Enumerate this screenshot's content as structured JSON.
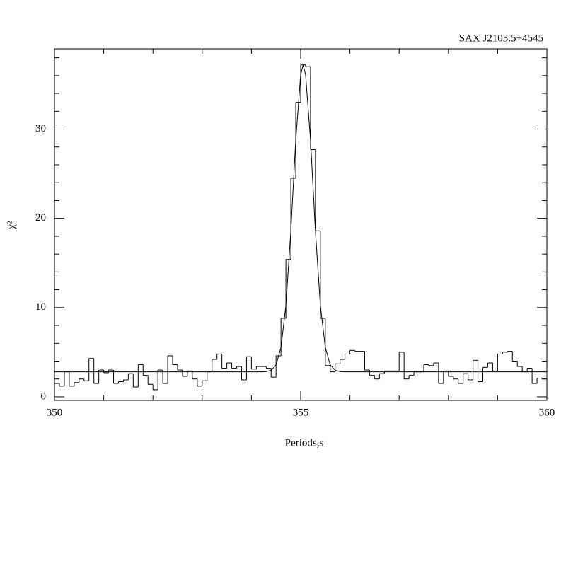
{
  "chart_data": {
    "type": "histogram",
    "title": "SAX J2103.5+4545",
    "xlabel": "Periods,s",
    "ylabel": "χ²",
    "bins": [
      350.0,
      350.1,
      350.2,
      350.3,
      350.4,
      350.5,
      350.6,
      350.7,
      350.8,
      350.9,
      351.0,
      351.1,
      351.2,
      351.3,
      351.4,
      351.5,
      351.6,
      351.7,
      351.8,
      351.9,
      352.0,
      352.1,
      352.2,
      352.3,
      352.4,
      352.5,
      352.6,
      352.7,
      352.8,
      352.9,
      353.0,
      353.1,
      353.2,
      353.3,
      353.4,
      353.5,
      353.6,
      353.7,
      353.8,
      353.9,
      354.0,
      354.1,
      354.2,
      354.3,
      354.4,
      354.5,
      354.6,
      354.7,
      354.8,
      354.9,
      355.0,
      355.1,
      355.2,
      355.3,
      355.4,
      355.5,
      355.6,
      355.7,
      355.8,
      355.9,
      356.0,
      356.1,
      356.2,
      356.3,
      356.4,
      356.5,
      356.6,
      356.7,
      356.8,
      356.9,
      357.0,
      357.1,
      357.2,
      357.3,
      357.4,
      357.5,
      357.6,
      357.7,
      357.8,
      357.9,
      358.0,
      358.1,
      358.2,
      358.3,
      358.4,
      358.5,
      358.6,
      358.7,
      358.8,
      358.9,
      359.0,
      359.1,
      359.2,
      359.3,
      359.4,
      359.5,
      359.6,
      359.7,
      359.8,
      359.9,
      360.0
    ],
    "values": [
      1.5,
      1.2,
      2.8,
      1.2,
      1.6,
      2.0,
      1.8,
      4.3,
      1.5,
      3.0,
      2.7,
      3.0,
      1.5,
      1.7,
      1.9,
      2.6,
      1.1,
      3.6,
      2.4,
      1.4,
      0.8,
      3.0,
      1.5,
      4.6,
      3.6,
      3.0,
      2.3,
      2.9,
      2.0,
      1.2,
      1.8,
      2.8,
      4.2,
      4.8,
      3.2,
      3.8,
      3.2,
      3.4,
      1.9,
      4.5,
      3.1,
      3.4,
      3.4,
      3.2,
      2.2,
      4.6,
      8.8,
      15.4,
      24.5,
      33.0,
      37.2,
      37.0,
      27.7,
      18.6,
      8.8,
      3.5,
      2.8,
      3.7,
      4.2,
      4.8,
      5.2,
      5.1,
      5.1,
      3.0,
      2.4,
      2.0,
      2.6,
      2.9,
      2.9,
      2.9,
      5.0,
      2.0,
      2.4,
      2.8,
      2.8,
      3.6,
      3.5,
      3.8,
      1.5,
      2.9,
      2.3,
      2.0,
      1.5,
      2.6,
      1.9,
      4.1,
      1.7,
      3.3,
      3.8,
      2.9,
      4.8,
      5.0,
      5.1,
      4.0,
      3.4,
      2.8,
      3.2,
      1.5,
      2.1,
      2.0
    ],
    "fit": {
      "x": [
        350,
        354.0,
        354.2,
        354.3,
        354.4,
        354.5,
        354.6,
        354.7,
        354.8,
        354.9,
        355.0,
        355.05,
        355.1,
        355.2,
        355.3,
        355.4,
        355.5,
        355.6,
        355.7,
        355.8,
        355.9,
        356.1,
        360
      ],
      "y": [
        2.8,
        2.8,
        2.8,
        2.83,
        2.98,
        3.58,
        5.54,
        10.25,
        18.55,
        28.77,
        36.1,
        37.2,
        36.1,
        28.77,
        18.55,
        10.25,
        5.54,
        3.58,
        2.98,
        2.83,
        2.8,
        2.8,
        2.8
      ]
    },
    "color": "#000000",
    "xlim": [
      350,
      360
    ],
    "xticks": [
      350,
      355,
      360
    ],
    "xminorticks": [
      351,
      352,
      353,
      354,
      356,
      357,
      358,
      359
    ],
    "ylim": [
      -0.4,
      39
    ],
    "yticks": [
      0,
      10,
      20,
      30
    ],
    "yminorticks": [
      2,
      4,
      6,
      8,
      12,
      14,
      16,
      18,
      22,
      24,
      26,
      28,
      32,
      34,
      36,
      38
    ]
  }
}
